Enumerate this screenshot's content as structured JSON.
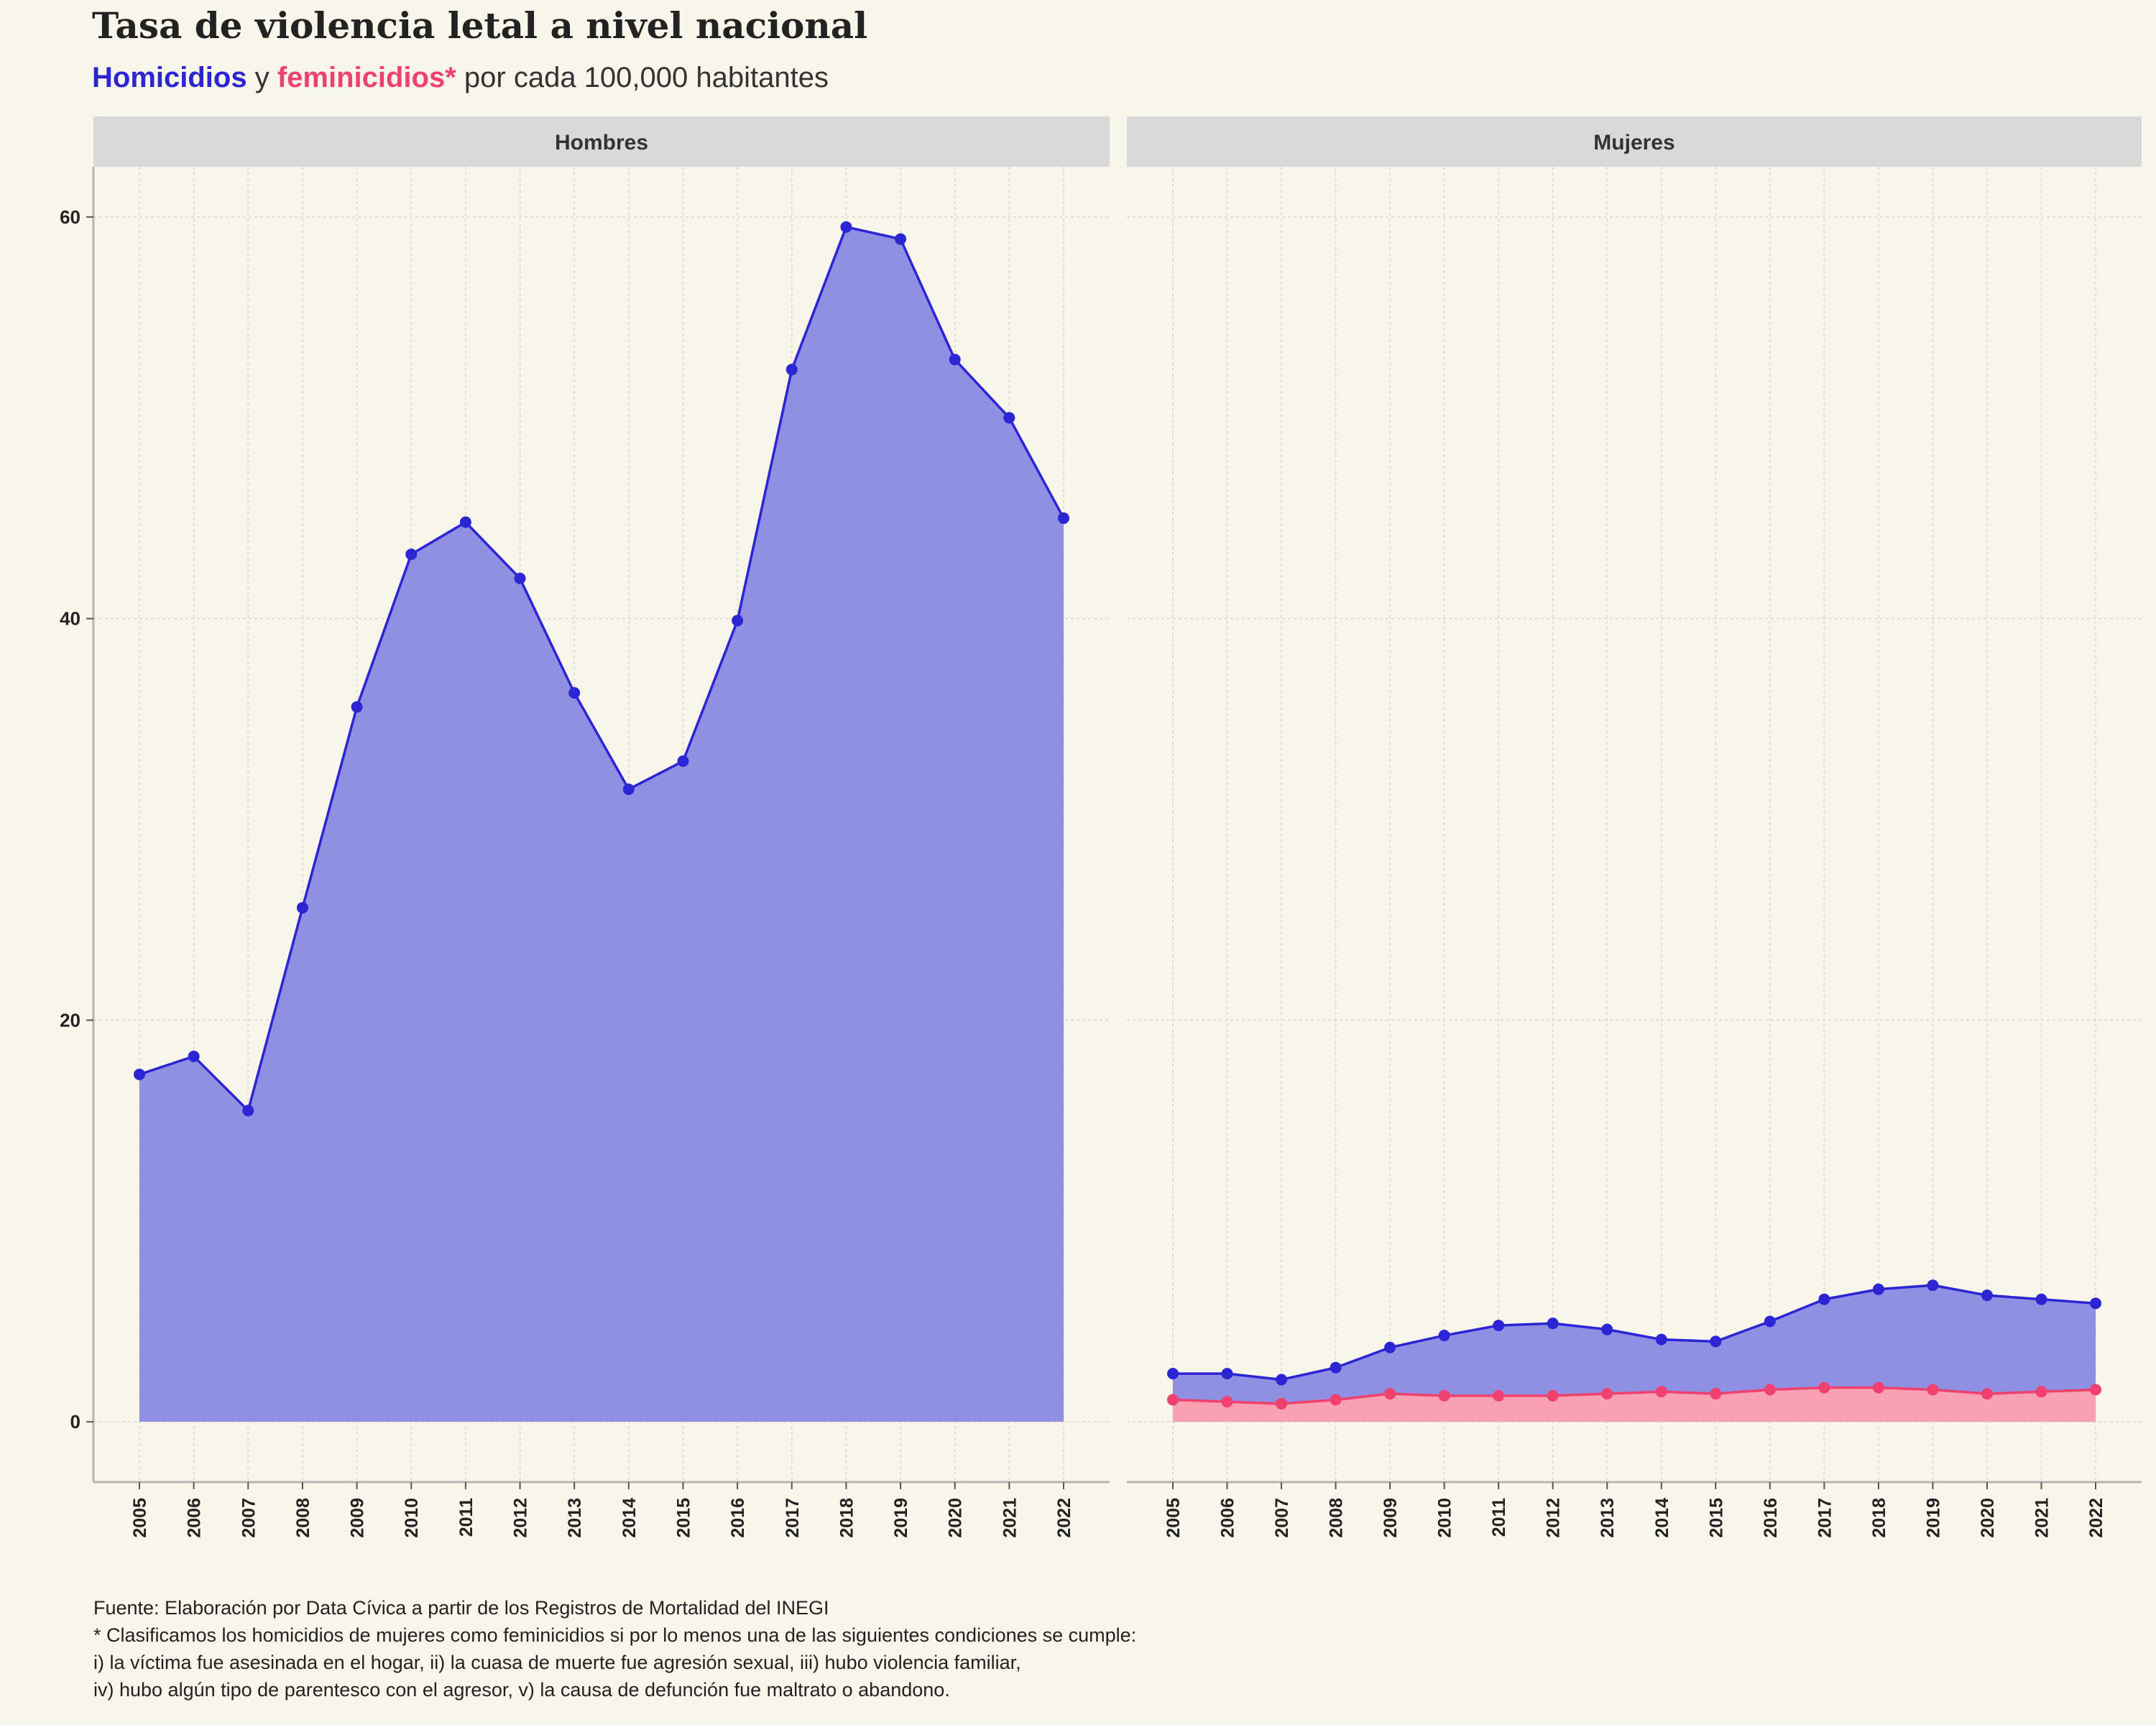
{
  "title": "Tasa de violencia letal a nivel nacional",
  "subtitle": {
    "part1": "Homicidios",
    "part2": " y ",
    "part3": "feminicidios*",
    "part4": " por cada 100,000 habitantes"
  },
  "caption": {
    "line1": "Fuente: Elaboración por Data Cívica a partir de los Registros de Mortalidad del INEGI",
    "line2": "* Clasificamos los homicidios de mujeres como feminicidios si por lo menos una de las siguientes condiciones se cumple:",
    "line3": "i) la víctima fue asesinada en el hogar, ii) la cuasa de muerte fue agresión sexual, iii) hubo violencia familiar,",
    "line4": "iv) hubo algún tipo de parentesco con el agresor, v) la causa de defunción fue maltrato o abandono."
  },
  "colors": {
    "homicidios": "#2b25d4",
    "homicidios_fill": "#8f8fe3",
    "feminicidios": "#f0406e",
    "feminicidios_fill": "#f9a1b2",
    "strip": "#d9d9d9",
    "background": "#f8f5ea"
  },
  "chart_data": {
    "type": "area",
    "facets": [
      "Hombres",
      "Mujeres"
    ],
    "x": [
      2005,
      2006,
      2007,
      2008,
      2009,
      2010,
      2011,
      2012,
      2013,
      2014,
      2015,
      2016,
      2017,
      2018,
      2019,
      2020,
      2021,
      2022
    ],
    "y_ticks": [
      0,
      20,
      40,
      60
    ],
    "ylim": [
      -3,
      62.5
    ],
    "grid": true,
    "panels": [
      {
        "facet": "Hombres",
        "series": [
          {
            "name": "Homicidios",
            "values": [
              17.3,
              18.2,
              15.5,
              25.6,
              35.6,
              43.2,
              44.8,
              42.0,
              36.3,
              31.5,
              32.9,
              39.9,
              52.4,
              59.5,
              58.9,
              52.9,
              50.0,
              45.0
            ]
          }
        ]
      },
      {
        "facet": "Mujeres",
        "series": [
          {
            "name": "Homicidios",
            "values": [
              2.4,
              2.4,
              2.1,
              2.7,
              3.7,
              4.3,
              4.8,
              4.9,
              4.6,
              4.1,
              4.0,
              5.0,
              6.1,
              6.6,
              6.8,
              6.3,
              6.1,
              5.9
            ]
          },
          {
            "name": "Feminicidios",
            "values": [
              1.1,
              1.0,
              0.9,
              1.1,
              1.4,
              1.3,
              1.3,
              1.3,
              1.4,
              1.5,
              1.4,
              1.6,
              1.7,
              1.7,
              1.6,
              1.4,
              1.5,
              1.6
            ]
          }
        ]
      }
    ]
  }
}
